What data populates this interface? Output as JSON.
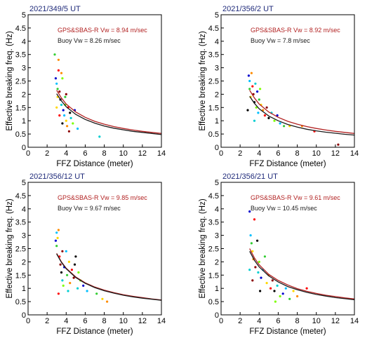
{
  "chart_data": [
    {
      "type": "scatter",
      "title": "2021/349/5 UT",
      "xlabel": "FFZ Distance (meter)",
      "ylabel": "Effective breaking freq. (Hz)",
      "xlim": [
        0,
        14
      ],
      "ylim": [
        0,
        5
      ],
      "xticks": [
        "0",
        "2",
        "4",
        "6",
        "8",
        "10",
        "12",
        "14"
      ],
      "yticks": [
        "0",
        "0.5",
        "1",
        "1.5",
        "2",
        "2.5",
        "3",
        "3.5",
        "4",
        "4.5",
        "5"
      ],
      "grid": false,
      "legend": [
        {
          "name": "GPS&SBAS-R Vw = 8.94 m/sec",
          "color": "#b22222"
        },
        {
          "name": "Buoy Vw = 8.26 m/sec",
          "color": "#1a1a1a"
        }
      ],
      "series": [
        {
          "name": "GPS&SBAS-R Vw = 8.94 m/sec",
          "color": "#b22222",
          "x": [
            3,
            3.5,
            4,
            5,
            6,
            7,
            8,
            9,
            10,
            11,
            12,
            13,
            14
          ],
          "y": [
            2.15,
            1.86,
            1.63,
            1.33,
            1.13,
            0.98,
            0.87,
            0.78,
            0.71,
            0.65,
            0.6,
            0.56,
            0.52
          ]
        },
        {
          "name": "Buoy Vw = 8.26 m/sec",
          "color": "#1a1a1a",
          "x": [
            3,
            3.5,
            4,
            5,
            6,
            7,
            8,
            9,
            10,
            11,
            12,
            13,
            14
          ],
          "y": [
            2.02,
            1.75,
            1.53,
            1.24,
            1.05,
            0.91,
            0.8,
            0.72,
            0.66,
            0.6,
            0.56,
            0.52,
            0.48
          ]
        }
      ],
      "points": [
        {
          "x": 2.9,
          "y": 2.6
        },
        {
          "x": 3.0,
          "y": 2.4
        },
        {
          "x": 3.1,
          "y": 2.2
        },
        {
          "x": 3.1,
          "y": 1.9
        },
        {
          "x": 3.2,
          "y": 3.3
        },
        {
          "x": 3.2,
          "y": 2.9
        },
        {
          "x": 3.3,
          "y": 2.1
        },
        {
          "x": 3.4,
          "y": 1.8
        },
        {
          "x": 3.5,
          "y": 1.6
        },
        {
          "x": 3.6,
          "y": 2.6
        },
        {
          "x": 3.7,
          "y": 1.4
        },
        {
          "x": 3.8,
          "y": 1.2
        },
        {
          "x": 3.9,
          "y": 1.9
        },
        {
          "x": 4.0,
          "y": 1.0
        },
        {
          "x": 4.1,
          "y": 0.8
        },
        {
          "x": 4.2,
          "y": 1.5
        },
        {
          "x": 4.3,
          "y": 0.6
        },
        {
          "x": 4.4,
          "y": 1.3
        },
        {
          "x": 4.5,
          "y": 1.1
        },
        {
          "x": 4.7,
          "y": 0.9
        },
        {
          "x": 4.9,
          "y": 1.4
        },
        {
          "x": 5.2,
          "y": 0.7
        },
        {
          "x": 2.8,
          "y": 3.5
        },
        {
          "x": 3.0,
          "y": 1.5
        },
        {
          "x": 3.5,
          "y": 2.8
        },
        {
          "x": 3.3,
          "y": 1.2
        },
        {
          "x": 4.0,
          "y": 2.0
        },
        {
          "x": 3.6,
          "y": 0.9
        },
        {
          "x": 7.5,
          "y": 0.4
        },
        {
          "x": 3.9,
          "y": 1.6
        }
      ]
    },
    {
      "type": "scatter",
      "title": "2021/356/2 UT",
      "xlabel": "FFZ Distance (meter)",
      "ylabel": "Effective breaking freq. (Hz)",
      "xlim": [
        0,
        14
      ],
      "ylim": [
        0,
        5
      ],
      "xticks": [
        "0",
        "2",
        "4",
        "6",
        "8",
        "10",
        "12",
        "14"
      ],
      "yticks": [
        "0",
        "0.5",
        "1",
        "1.5",
        "2",
        "2.5",
        "3",
        "3.5",
        "4",
        "4.5",
        "5"
      ],
      "grid": false,
      "legend": [
        {
          "name": "GPS&SBAS-R Vw = 8.92 m/sec",
          "color": "#b22222"
        },
        {
          "name": "Buoy Vw = 7.8 m/sec",
          "color": "#1a1a1a"
        }
      ],
      "series": [
        {
          "name": "GPS&SBAS-R Vw = 8.92 m/sec",
          "color": "#b22222",
          "x": [
            3,
            3.5,
            4,
            5,
            6,
            7,
            8,
            9,
            10,
            11,
            12,
            13,
            14
          ],
          "y": [
            2.15,
            1.86,
            1.63,
            1.33,
            1.13,
            0.98,
            0.87,
            0.78,
            0.71,
            0.65,
            0.6,
            0.56,
            0.52
          ]
        },
        {
          "name": "Buoy Vw = 7.8 m/sec",
          "color": "#1a1a1a",
          "x": [
            3,
            3.5,
            4,
            5,
            6,
            7,
            8,
            9,
            10,
            11,
            12,
            13,
            14
          ],
          "y": [
            1.92,
            1.66,
            1.45,
            1.18,
            1.0,
            0.86,
            0.76,
            0.68,
            0.62,
            0.57,
            0.53,
            0.49,
            0.46
          ]
        }
      ],
      "points": [
        {
          "x": 2.9,
          "y": 2.7
        },
        {
          "x": 3.0,
          "y": 2.5
        },
        {
          "x": 3.0,
          "y": 2.2
        },
        {
          "x": 3.1,
          "y": 1.9
        },
        {
          "x": 3.2,
          "y": 2.8
        },
        {
          "x": 3.3,
          "y": 2.3
        },
        {
          "x": 3.4,
          "y": 2.0
        },
        {
          "x": 3.5,
          "y": 1.7
        },
        {
          "x": 3.6,
          "y": 2.4
        },
        {
          "x": 3.7,
          "y": 1.5
        },
        {
          "x": 3.8,
          "y": 2.1
        },
        {
          "x": 3.9,
          "y": 1.3
        },
        {
          "x": 4.0,
          "y": 1.8
        },
        {
          "x": 4.2,
          "y": 1.6
        },
        {
          "x": 4.4,
          "y": 1.4
        },
        {
          "x": 4.6,
          "y": 1.2
        },
        {
          "x": 4.8,
          "y": 1.5
        },
        {
          "x": 5.0,
          "y": 1.1
        },
        {
          "x": 5.3,
          "y": 1.3
        },
        {
          "x": 5.6,
          "y": 1.0
        },
        {
          "x": 5.9,
          "y": 1.2
        },
        {
          "x": 6.2,
          "y": 0.9
        },
        {
          "x": 6.6,
          "y": 0.8
        },
        {
          "x": 7.2,
          "y": 0.8
        },
        {
          "x": 8.5,
          "y": 0.8
        },
        {
          "x": 9.8,
          "y": 0.6
        },
        {
          "x": 12.3,
          "y": 0.1
        },
        {
          "x": 2.8,
          "y": 1.4
        },
        {
          "x": 3.5,
          "y": 1.0
        },
        {
          "x": 4.1,
          "y": 2.2
        }
      ]
    },
    {
      "type": "scatter",
      "title": "2021/356/12 UT",
      "xlabel": "FFZ Distance (meter)",
      "ylabel": "Effective breaking freq. (Hz)",
      "xlim": [
        0,
        14
      ],
      "ylim": [
        0,
        5
      ],
      "xticks": [
        "0",
        "2",
        "4",
        "6",
        "8",
        "10",
        "12",
        "14"
      ],
      "yticks": [
        "0",
        "0.5",
        "1",
        "1.5",
        "2",
        "2.5",
        "3",
        "3.5",
        "4",
        "4.5",
        "5"
      ],
      "grid": false,
      "legend": [
        {
          "name": "GPS&SBAS-R Vw = 9.85 m/sec",
          "color": "#b22222"
        },
        {
          "name": "Buoy Vw = 9.67 m/sec",
          "color": "#1a1a1a"
        }
      ],
      "series": [
        {
          "name": "GPS&SBAS-R Vw = 9.85 m/sec",
          "color": "#b22222",
          "x": [
            3,
            3.5,
            4,
            5,
            6,
            7,
            8,
            9,
            10,
            11,
            12,
            13,
            14
          ],
          "y": [
            2.32,
            2.0,
            1.76,
            1.43,
            1.21,
            1.05,
            0.93,
            0.84,
            0.76,
            0.7,
            0.65,
            0.6,
            0.56
          ]
        },
        {
          "name": "Buoy Vw = 9.67 m/sec",
          "color": "#1a1a1a",
          "x": [
            3,
            3.5,
            4,
            5,
            6,
            7,
            8,
            9,
            10,
            11,
            12,
            13,
            14
          ],
          "y": [
            2.3,
            1.98,
            1.74,
            1.41,
            1.19,
            1.03,
            0.91,
            0.82,
            0.74,
            0.68,
            0.63,
            0.59,
            0.55
          ]
        }
      ],
      "points": [
        {
          "x": 2.9,
          "y": 2.8
        },
        {
          "x": 3.0,
          "y": 3.1
        },
        {
          "x": 3.0,
          "y": 2.6
        },
        {
          "x": 3.1,
          "y": 2.9
        },
        {
          "x": 3.2,
          "y": 3.2
        },
        {
          "x": 3.3,
          "y": 2.2
        },
        {
          "x": 3.4,
          "y": 1.9
        },
        {
          "x": 3.5,
          "y": 1.6
        },
        {
          "x": 3.6,
          "y": 1.3
        },
        {
          "x": 3.7,
          "y": 1.1
        },
        {
          "x": 3.8,
          "y": 1.8
        },
        {
          "x": 4.0,
          "y": 2.4
        },
        {
          "x": 4.1,
          "y": 1.5
        },
        {
          "x": 4.3,
          "y": 2.0
        },
        {
          "x": 4.4,
          "y": 1.2
        },
        {
          "x": 4.6,
          "y": 1.7
        },
        {
          "x": 4.8,
          "y": 1.4
        },
        {
          "x": 5.0,
          "y": 2.2
        },
        {
          "x": 5.2,
          "y": 1.0
        },
        {
          "x": 5.5,
          "y": 1.3
        },
        {
          "x": 5.8,
          "y": 1.1
        },
        {
          "x": 6.2,
          "y": 0.9
        },
        {
          "x": 7.2,
          "y": 0.8
        },
        {
          "x": 7.8,
          "y": 0.6
        },
        {
          "x": 8.3,
          "y": 0.5
        },
        {
          "x": 3.2,
          "y": 0.8
        },
        {
          "x": 3.6,
          "y": 2.4
        },
        {
          "x": 4.9,
          "y": 1.9
        },
        {
          "x": 4.2,
          "y": 0.9
        },
        {
          "x": 5.3,
          "y": 1.6
        }
      ]
    },
    {
      "type": "scatter",
      "title": "2021/356/21 UT",
      "xlabel": "FFZ Distance (meter)",
      "ylabel": "Effective breaking freq. (Hz)",
      "xlim": [
        0,
        14
      ],
      "ylim": [
        0,
        5
      ],
      "xticks": [
        "0",
        "2",
        "4",
        "6",
        "8",
        "10",
        "12",
        "14"
      ],
      "yticks": [
        "0",
        "0.5",
        "1",
        "1.5",
        "2",
        "2.5",
        "3",
        "3.5",
        "4",
        "4.5",
        "5"
      ],
      "grid": false,
      "legend": [
        {
          "name": "GPS&SBAS-R Vw = 9.61 m/sec",
          "color": "#b22222"
        },
        {
          "name": "Buoy Vw = 10.45 m/sec",
          "color": "#1a1a1a"
        }
      ],
      "series": [
        {
          "name": "GPS&SBAS-R Vw = 9.61 m/sec",
          "color": "#b22222",
          "x": [
            3,
            3.5,
            4,
            5,
            6,
            7,
            8,
            9,
            10,
            11,
            12,
            13,
            14
          ],
          "y": [
            2.5,
            2.15,
            1.89,
            1.53,
            1.3,
            1.13,
            0.99,
            0.89,
            0.81,
            0.74,
            0.69,
            0.64,
            0.6
          ]
        },
        {
          "name": "Buoy Vw = 10.45 m/sec",
          "color": "#1a1a1a",
          "x": [
            3,
            3.5,
            4,
            5,
            6,
            7,
            8,
            9,
            10,
            11,
            12,
            13,
            14
          ],
          "y": [
            2.4,
            2.06,
            1.81,
            1.47,
            1.24,
            1.07,
            0.95,
            0.85,
            0.77,
            0.71,
            0.65,
            0.61,
            0.57
          ]
        }
      ],
      "points": [
        {
          "x": 3.0,
          "y": 3.9
        },
        {
          "x": 3.1,
          "y": 3.0
        },
        {
          "x": 3.2,
          "y": 2.7
        },
        {
          "x": 3.3,
          "y": 2.4
        },
        {
          "x": 3.4,
          "y": 2.1
        },
        {
          "x": 3.5,
          "y": 3.6
        },
        {
          "x": 3.6,
          "y": 1.8
        },
        {
          "x": 3.8,
          "y": 2.8
        },
        {
          "x": 3.9,
          "y": 1.6
        },
        {
          "x": 4.0,
          "y": 2.0
        },
        {
          "x": 4.2,
          "y": 1.4
        },
        {
          "x": 4.4,
          "y": 1.7
        },
        {
          "x": 4.6,
          "y": 2.2
        },
        {
          "x": 4.8,
          "y": 1.2
        },
        {
          "x": 5.0,
          "y": 1.5
        },
        {
          "x": 5.2,
          "y": 1.0
        },
        {
          "x": 5.4,
          "y": 1.3
        },
        {
          "x": 5.6,
          "y": 0.9
        },
        {
          "x": 5.9,
          "y": 1.1
        },
        {
          "x": 6.2,
          "y": 0.7
        },
        {
          "x": 6.5,
          "y": 0.8
        },
        {
          "x": 6.8,
          "y": 1.0
        },
        {
          "x": 7.2,
          "y": 0.6
        },
        {
          "x": 7.6,
          "y": 0.9
        },
        {
          "x": 8.0,
          "y": 0.7
        },
        {
          "x": 9.0,
          "y": 1.0
        },
        {
          "x": 3.3,
          "y": 1.3
        },
        {
          "x": 4.1,
          "y": 0.9
        },
        {
          "x": 3.0,
          "y": 1.7
        },
        {
          "x": 5.7,
          "y": 0.5
        }
      ]
    }
  ],
  "palette": [
    "#0000cd",
    "#00bfff",
    "#32cd32",
    "#ffd700",
    "#ff8c00",
    "#ff0000",
    "#8b0000",
    "#000000",
    "#00ced1",
    "#7fff00"
  ]
}
